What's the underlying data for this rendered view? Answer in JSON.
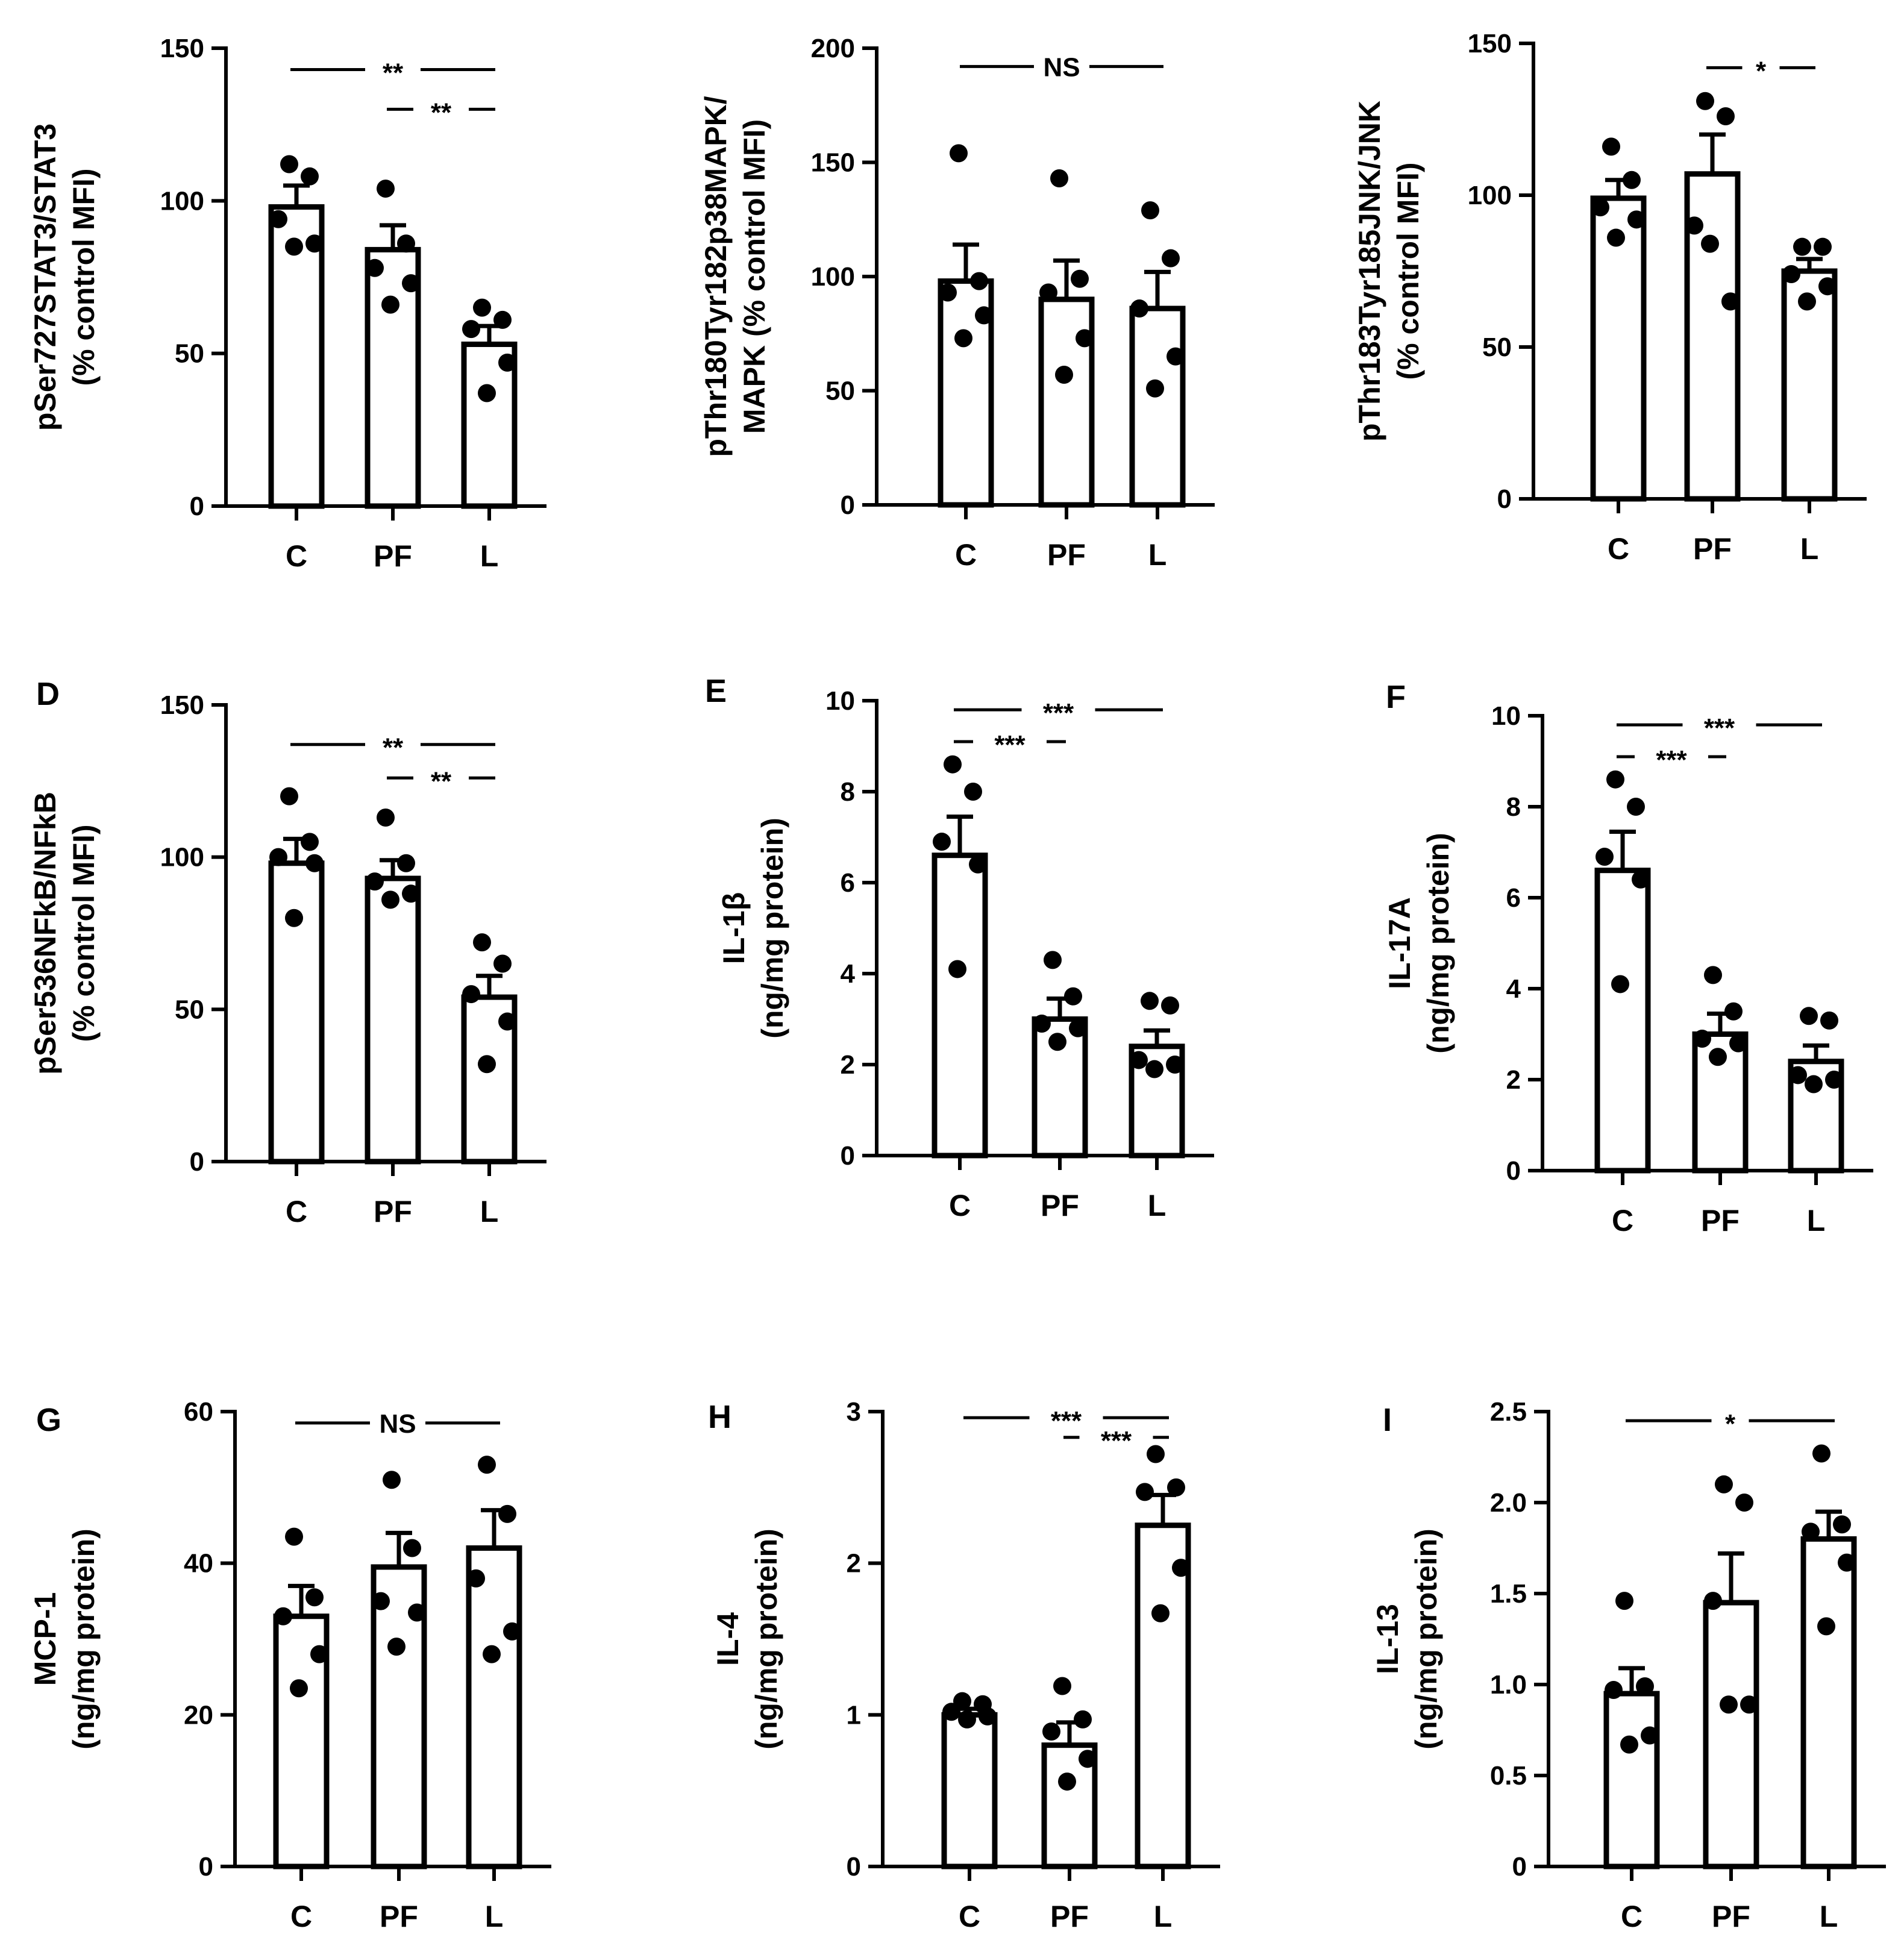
{
  "chart_data": [
    {
      "id": "stat3",
      "panel": "",
      "type": "bar",
      "ylabel": [
        "pSer727STAT3/STAT3",
        "(% control MFI)"
      ],
      "yticks": [
        0,
        50,
        100,
        150
      ],
      "ylim": [
        0,
        150
      ],
      "categories": [
        "C",
        "PF",
        "L"
      ],
      "means": [
        98,
        84,
        53
      ],
      "sem": [
        7,
        8,
        6
      ],
      "points": [
        [
          112,
          108,
          94,
          86,
          85
        ],
        [
          104,
          86,
          78,
          73,
          66
        ],
        [
          65,
          61,
          58,
          47,
          37
        ]
      ],
      "significance": [
        {
          "from": 0,
          "to": 2,
          "label": "**",
          "y": 143
        },
        {
          "from": 1,
          "to": 2,
          "label": "**",
          "y": 130
        }
      ]
    },
    {
      "id": "p38",
      "panel": "",
      "type": "bar",
      "ylabel": [
        "pThr180Tyr182p38MAPK/",
        "MAPK (% control MFI)"
      ],
      "yticks": [
        0,
        50,
        100,
        150,
        200
      ],
      "ylim": [
        0,
        200
      ],
      "categories": [
        "C",
        "PF",
        "L"
      ],
      "means": [
        98,
        90,
        86
      ],
      "sem": [
        16,
        17,
        16
      ],
      "points": [
        [
          154,
          98,
          93,
          83,
          73
        ],
        [
          143,
          99,
          93,
          73,
          57
        ],
        [
          129,
          108,
          86,
          65,
          51
        ]
      ],
      "significance": [
        {
          "from": 0,
          "to": 2,
          "label": "NS",
          "y": 192
        }
      ]
    },
    {
      "id": "jnk",
      "panel": "",
      "type": "bar",
      "ylabel": [
        "pThr183Tyr185JNK/JNK",
        "(% control MFI)"
      ],
      "yticks": [
        0,
        50,
        100,
        150
      ],
      "ylim": [
        0,
        150
      ],
      "categories": [
        "C",
        "PF",
        "L"
      ],
      "means": [
        99,
        107,
        75
      ],
      "sem": [
        6,
        13,
        4
      ],
      "points": [
        [
          116,
          105,
          96,
          92,
          86
        ],
        [
          131,
          126,
          90,
          65,
          84
        ],
        [
          83,
          83,
          74,
          70,
          65
        ]
      ],
      "significance": [
        {
          "from": 1,
          "to": 2,
          "label": "*",
          "y": 142
        }
      ]
    },
    {
      "id": "nfkb",
      "panel": "D",
      "type": "bar",
      "ylabel": [
        "pSer536NFkB/NFkB",
        "(% control MFI)"
      ],
      "yticks": [
        0,
        50,
        100,
        150
      ],
      "ylim": [
        0,
        150
      ],
      "categories": [
        "C",
        "PF",
        "L"
      ],
      "means": [
        98,
        93,
        54
      ],
      "sem": [
        8,
        6,
        7
      ],
      "points": [
        [
          120,
          105,
          100,
          98,
          80
        ],
        [
          113,
          98,
          92,
          88,
          86
        ],
        [
          72,
          65,
          55,
          46,
          32
        ]
      ],
      "significance": [
        {
          "from": 0,
          "to": 2,
          "label": "**",
          "y": 137
        },
        {
          "from": 1,
          "to": 2,
          "label": "**",
          "y": 126
        }
      ]
    },
    {
      "id": "il1b",
      "panel": "E",
      "type": "bar",
      "ylabel": [
        "IL-1β",
        "(ng/mg protein)"
      ],
      "yticks": [
        0,
        2,
        4,
        6,
        8,
        10
      ],
      "ylim": [
        0,
        10
      ],
      "categories": [
        "C",
        "PF",
        "L"
      ],
      "means": [
        6.6,
        3.0,
        2.4
      ],
      "sem": [
        0.85,
        0.45,
        0.35
      ],
      "points": [
        [
          8.6,
          8.0,
          6.9,
          6.4,
          4.1
        ],
        [
          4.3,
          3.5,
          2.9,
          2.8,
          2.5
        ],
        [
          3.4,
          3.3,
          2.1,
          2.0,
          1.9
        ]
      ],
      "significance": [
        {
          "from": 0,
          "to": 2,
          "label": "***",
          "y": 9.8
        },
        {
          "from": 0,
          "to": 1,
          "label": "***",
          "y": 9.1
        }
      ]
    },
    {
      "id": "il17a",
      "panel": "F",
      "type": "bar",
      "ylabel": [
        "IL-17A",
        "(ng/mg protein)"
      ],
      "yticks": [
        0,
        2,
        4,
        6,
        8,
        10
      ],
      "ylim": [
        0,
        10
      ],
      "categories": [
        "C",
        "PF",
        "L"
      ],
      "means": [
        6.6,
        3.0,
        2.4
      ],
      "sem": [
        0.85,
        0.45,
        0.35
      ],
      "points": [
        [
          8.6,
          8.0,
          6.9,
          6.4,
          4.1
        ],
        [
          4.3,
          3.5,
          2.9,
          2.8,
          2.5
        ],
        [
          3.4,
          3.3,
          2.1,
          2.0,
          1.9
        ]
      ],
      "significance": [
        {
          "from": 0,
          "to": 2,
          "label": "***",
          "y": 9.8
        },
        {
          "from": 0,
          "to": 1,
          "label": "***",
          "y": 9.1
        }
      ]
    },
    {
      "id": "mcp1",
      "panel": "G",
      "type": "bar",
      "ylabel": [
        "MCP-1",
        "(ng/mg protein)"
      ],
      "yticks": [
        0,
        20,
        40,
        60
      ],
      "ylim": [
        0,
        60
      ],
      "categories": [
        "C",
        "PF",
        "L"
      ],
      "means": [
        33,
        39.5,
        42
      ],
      "sem": [
        4,
        4.5,
        5
      ],
      "points": [
        [
          43.5,
          35.5,
          33,
          28,
          23.5
        ],
        [
          51,
          42,
          35,
          33.5,
          29
        ],
        [
          53,
          46.5,
          38,
          31,
          28
        ]
      ],
      "significance": [
        {
          "from": 0,
          "to": 2,
          "label": "NS",
          "y": 58.5
        }
      ]
    },
    {
      "id": "il4",
      "panel": "H",
      "type": "bar",
      "ylabel": [
        "IL-4",
        "(ng/mg protein)"
      ],
      "yticks": [
        0,
        1,
        2,
        3
      ],
      "ylim": [
        0,
        3
      ],
      "categories": [
        "C",
        "PF",
        "L"
      ],
      "means": [
        1.0,
        0.8,
        2.25
      ],
      "sem": [
        0.04,
        0.15,
        0.2
      ],
      "points": [
        [
          1.09,
          1.07,
          1.02,
          0.99,
          0.97
        ],
        [
          1.19,
          0.97,
          0.89,
          0.71,
          0.56
        ],
        [
          2.72,
          2.5,
          2.47,
          1.97,
          1.67
        ]
      ],
      "significance": [
        {
          "from": 0,
          "to": 2,
          "label": "***",
          "y": 2.96
        },
        {
          "from": 1,
          "to": 2,
          "label": "***",
          "y": 2.83
        }
      ]
    },
    {
      "id": "il13",
      "panel": "I",
      "type": "bar",
      "ylabel": [
        "IL-13",
        "(ng/mg protein)"
      ],
      "yticks": [
        0,
        0.5,
        1.0,
        1.5,
        2.0,
        2.5
      ],
      "yticklabels": [
        "0",
        "0.5",
        "1.0",
        "1.5",
        "2.0",
        "2.5"
      ],
      "ylim": [
        0,
        2.5
      ],
      "categories": [
        "C",
        "PF",
        "L"
      ],
      "means": [
        0.95,
        1.45,
        1.8
      ],
      "sem": [
        0.14,
        0.27,
        0.15
      ],
      "points": [
        [
          1.46,
          0.99,
          0.97,
          0.72,
          0.67
        ],
        [
          2.1,
          2.0,
          1.46,
          0.89,
          0.89
        ],
        [
          2.27,
          1.88,
          1.84,
          1.67,
          1.32
        ]
      ],
      "significance": [
        {
          "from": 0,
          "to": 2,
          "label": "*",
          "y": 2.45
        }
      ]
    }
  ]
}
